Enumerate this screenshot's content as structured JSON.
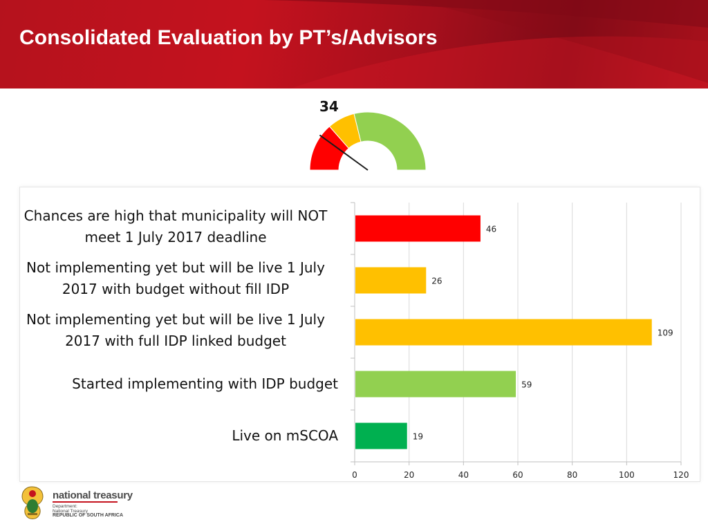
{
  "header": {
    "title": "Consolidated Evaluation by PT’s/Advisors"
  },
  "gauge": {
    "value": "34",
    "needle_value": 34,
    "max": 170,
    "segments": [
      {
        "end": 46,
        "color": "#ff0000"
      },
      {
        "end": 72,
        "color": "#ffc000"
      },
      {
        "end": 170,
        "color": "#92d050"
      }
    ]
  },
  "chart_data": {
    "type": "bar",
    "orientation": "horizontal",
    "categories": [
      "Chances are high that municipality will NOT meet 1 July 2017 deadline",
      "Not implementing yet but will be live 1 July 2017 with budget without fill IDP",
      "Not implementing yet but will be live 1 July 2017 with full IDP linked budget",
      "Started implementing with IDP budget",
      "Live on mSCOA"
    ],
    "values": [
      46,
      26,
      109,
      59,
      19
    ],
    "colors": [
      "#ff0000",
      "#ffc000",
      "#ffc000",
      "#92d050",
      "#00b050"
    ],
    "xlim": [
      0,
      120
    ],
    "xticks": [
      "0",
      "20",
      "40",
      "60",
      "80",
      "100",
      "120"
    ],
    "grid": true
  },
  "footer": {
    "logo_name": "national treasury",
    "dept_line1": "Department:",
    "dept_line2": "National Treasury",
    "dept_line3": "REPUBLIC OF SOUTH AFRICA",
    "emblem_icon": "coat-of-arms-icon"
  }
}
